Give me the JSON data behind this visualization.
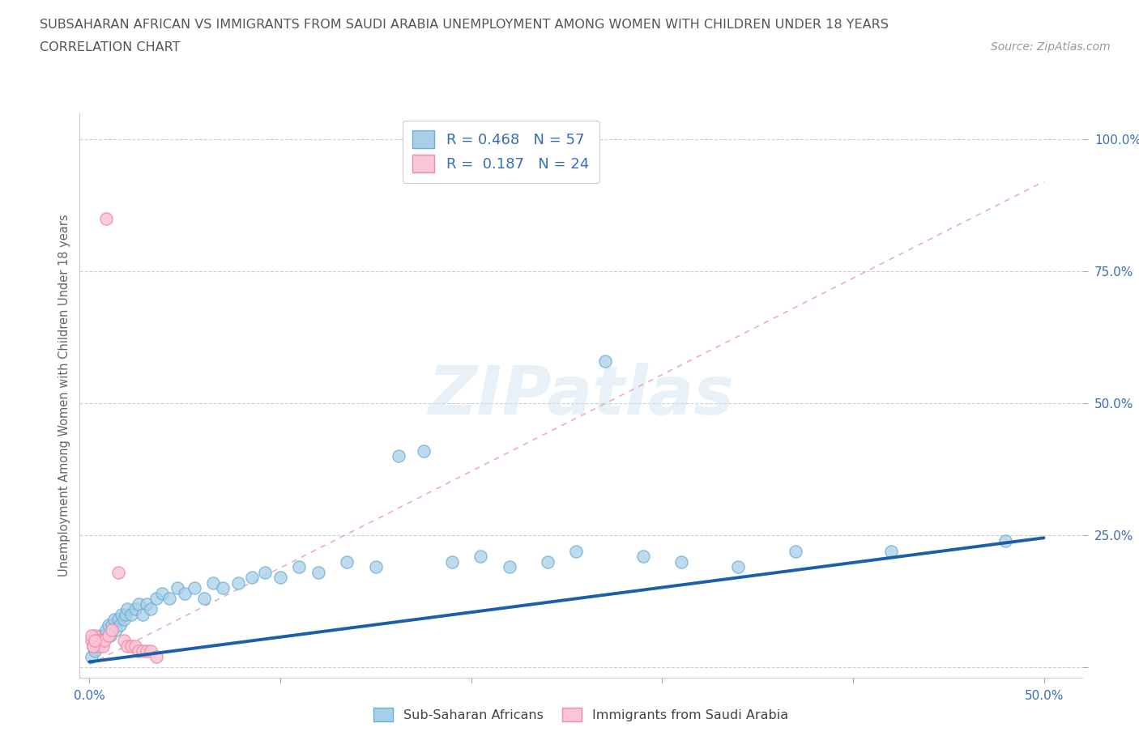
{
  "title_line1": "SUBSAHARAN AFRICAN VS IMMIGRANTS FROM SAUDI ARABIA UNEMPLOYMENT AMONG WOMEN WITH CHILDREN UNDER 18 YEARS",
  "title_line2": "CORRELATION CHART",
  "source": "Source: ZipAtlas.com",
  "ylabel": "Unemployment Among Women with Children Under 18 years",
  "xlim": [
    -0.005,
    0.52
  ],
  "ylim": [
    -0.02,
    1.05
  ],
  "blue_color": "#a8cfe8",
  "blue_edge_color": "#6aadd5",
  "pink_color": "#f9c6d5",
  "pink_edge_color": "#f08caa",
  "line_blue_color": "#1a5fa8",
  "line_pink_color": "#e8a0b8",
  "R_blue": 0.468,
  "N_blue": 57,
  "R_pink": 0.187,
  "N_pink": 24,
  "watermark": "ZIPatlas",
  "background_color": "#ffffff",
  "grid_color": "#d0d0d0",
  "title_color": "#555555",
  "axis_label_color": "#666666",
  "tick_color": "#3a6db5",
  "legend_label_color": "#3a6db5",
  "blue_scatter_x": [
    0.001,
    0.002,
    0.003,
    0.004,
    0.005,
    0.006,
    0.007,
    0.008,
    0.009,
    0.01,
    0.011,
    0.012,
    0.013,
    0.014,
    0.015,
    0.016,
    0.017,
    0.018,
    0.019,
    0.02,
    0.022,
    0.024,
    0.026,
    0.028,
    0.03,
    0.032,
    0.035,
    0.038,
    0.042,
    0.046,
    0.05,
    0.055,
    0.06,
    0.065,
    0.07,
    0.078,
    0.085,
    0.092,
    0.1,
    0.11,
    0.12,
    0.135,
    0.15,
    0.162,
    0.175,
    0.19,
    0.205,
    0.22,
    0.24,
    0.255,
    0.27,
    0.29,
    0.31,
    0.34,
    0.37,
    0.42,
    0.48
  ],
  "blue_scatter_y": [
    0.02,
    0.04,
    0.03,
    0.05,
    0.04,
    0.06,
    0.05,
    0.06,
    0.07,
    0.08,
    0.06,
    0.08,
    0.09,
    0.07,
    0.09,
    0.08,
    0.1,
    0.09,
    0.1,
    0.11,
    0.1,
    0.11,
    0.12,
    0.1,
    0.12,
    0.11,
    0.13,
    0.14,
    0.13,
    0.15,
    0.14,
    0.15,
    0.13,
    0.16,
    0.15,
    0.16,
    0.17,
    0.18,
    0.17,
    0.19,
    0.18,
    0.2,
    0.19,
    0.4,
    0.41,
    0.2,
    0.21,
    0.19,
    0.2,
    0.22,
    0.58,
    0.21,
    0.2,
    0.19,
    0.22,
    0.22,
    0.24
  ],
  "pink_scatter_x": [
    0.001,
    0.002,
    0.003,
    0.004,
    0.005,
    0.006,
    0.007,
    0.008,
    0.009,
    0.01,
    0.012,
    0.015,
    0.018,
    0.02,
    0.022,
    0.024,
    0.026,
    0.028,
    0.03,
    0.032,
    0.035,
    0.001,
    0.002,
    0.003
  ],
  "pink_scatter_y": [
    0.05,
    0.04,
    0.06,
    0.05,
    0.04,
    0.05,
    0.04,
    0.05,
    0.85,
    0.06,
    0.07,
    0.18,
    0.05,
    0.04,
    0.04,
    0.04,
    0.03,
    0.03,
    0.03,
    0.03,
    0.02,
    0.06,
    0.04,
    0.05
  ],
  "blue_line_x": [
    0.0,
    0.5
  ],
  "blue_line_y": [
    0.01,
    0.245
  ],
  "pink_line_x": [
    0.0,
    0.5
  ],
  "pink_line_y": [
    0.005,
    0.92
  ]
}
